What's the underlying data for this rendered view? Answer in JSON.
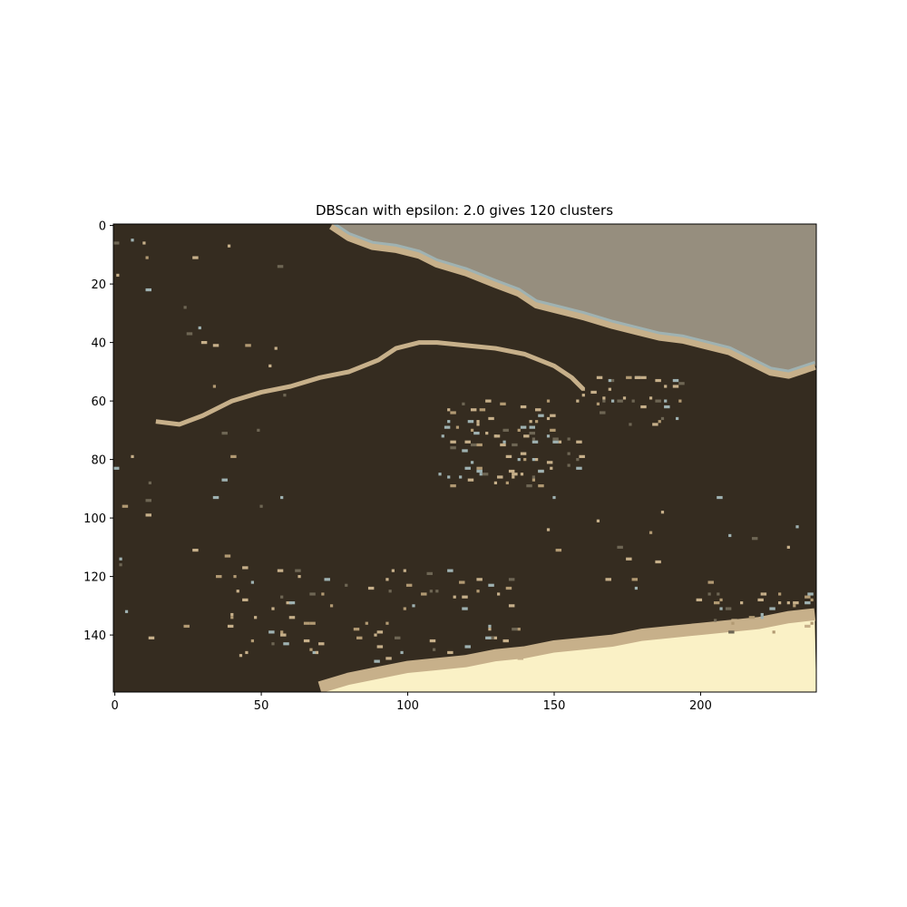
{
  "chart_data": {
    "type": "heatmap",
    "title": "DBScan with epsilon: 2.0 gives 120 clusters",
    "xlabel": "",
    "ylabel": "",
    "image_width": 240,
    "image_height": 160,
    "xlim": [
      -0.5,
      239.5
    ],
    "ylim": [
      159.5,
      -0.5
    ],
    "xticks": [
      0,
      50,
      100,
      150,
      200
    ],
    "yticks": [
      0,
      20,
      40,
      60,
      80,
      100,
      120,
      140
    ],
    "grid": false,
    "legend": "none",
    "cluster_count": 120,
    "epsilon": 2.0,
    "colors": {
      "background_cluster": "#352c20",
      "sky_cluster": "#968e7e",
      "sand_cluster": "#faf1c6",
      "edge_cluster": "#c7b08a",
      "water_edge_cluster": "#9fb2b2",
      "tan_cluster": "#b29a73",
      "olive_cluster": "#6e6654"
    },
    "regions": {
      "sky_boundary": [
        [
          74,
          0
        ],
        [
          80,
          4
        ],
        [
          88,
          7
        ],
        [
          96,
          8
        ],
        [
          104,
          10
        ],
        [
          110,
          13
        ],
        [
          120,
          16
        ],
        [
          130,
          20
        ],
        [
          138,
          23
        ],
        [
          144,
          27
        ],
        [
          152,
          29
        ],
        [
          160,
          31
        ],
        [
          170,
          34
        ],
        [
          178,
          36
        ],
        [
          186,
          38
        ],
        [
          194,
          39
        ],
        [
          202,
          41
        ],
        [
          210,
          43
        ],
        [
          218,
          47
        ],
        [
          224,
          50
        ],
        [
          230,
          51
        ],
        [
          236,
          49
        ],
        [
          239,
          48
        ]
      ],
      "sand_boundary": [
        [
          70,
          160
        ],
        [
          80,
          157
        ],
        [
          90,
          155
        ],
        [
          100,
          153
        ],
        [
          110,
          152
        ],
        [
          120,
          151
        ],
        [
          130,
          149
        ],
        [
          140,
          148
        ],
        [
          150,
          146
        ],
        [
          160,
          145
        ],
        [
          170,
          144
        ],
        [
          180,
          142
        ],
        [
          190,
          141
        ],
        [
          200,
          140
        ],
        [
          210,
          139
        ],
        [
          220,
          138
        ],
        [
          230,
          136
        ],
        [
          239,
          135
        ]
      ],
      "ridge_line": [
        [
          14,
          67
        ],
        [
          22,
          68
        ],
        [
          30,
          65
        ],
        [
          40,
          60
        ],
        [
          50,
          57
        ],
        [
          60,
          55
        ],
        [
          70,
          52
        ],
        [
          80,
          50
        ],
        [
          90,
          46
        ],
        [
          96,
          42
        ],
        [
          104,
          40
        ],
        [
          110,
          40
        ],
        [
          120,
          41
        ],
        [
          130,
          42
        ],
        [
          140,
          44
        ],
        [
          150,
          48
        ],
        [
          156,
          52
        ],
        [
          160,
          56
        ]
      ]
    }
  }
}
